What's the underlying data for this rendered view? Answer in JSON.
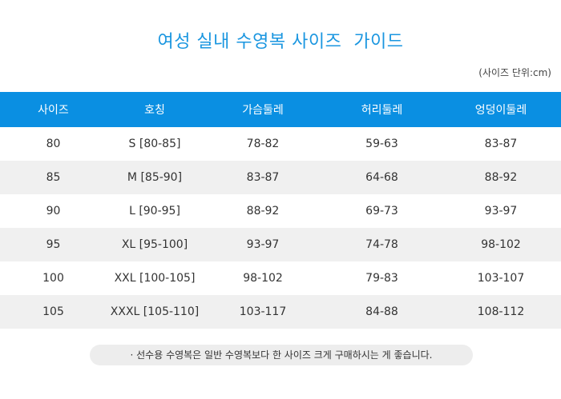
{
  "title": "여성 실내 수영복 사이즈  가이드",
  "unit_note": "(사이즈 단위:cm)",
  "table": {
    "headers": [
      "사이즈",
      "호칭",
      "가슴둘레",
      "허리둘레",
      "엉덩이둘레"
    ],
    "rows": [
      [
        "80",
        "S [80-85]",
        "78-82",
        "59-63",
        "83-87"
      ],
      [
        "85",
        "M [85-90]",
        "83-87",
        "64-68",
        "88-92"
      ],
      [
        "90",
        "L [90-95]",
        "88-92",
        "69-73",
        "93-97"
      ],
      [
        "95",
        "XL [95-100]",
        "93-97",
        "74-78",
        "98-102"
      ],
      [
        "100",
        "XXL [100-105]",
        "98-102",
        "79-83",
        "103-107"
      ],
      [
        "105",
        "XXXL [105-110]",
        "103-117",
        "84-88",
        "108-112"
      ]
    ]
  },
  "footnote": "· 선수용 수영복은 일반 수영복보다 한 사이즈 크게 구매하시는 게 좋습니다.",
  "colors": {
    "accent": "#1a96e0",
    "header_bg": "#0a8fe2",
    "row_shade": "#f0f0f0"
  }
}
